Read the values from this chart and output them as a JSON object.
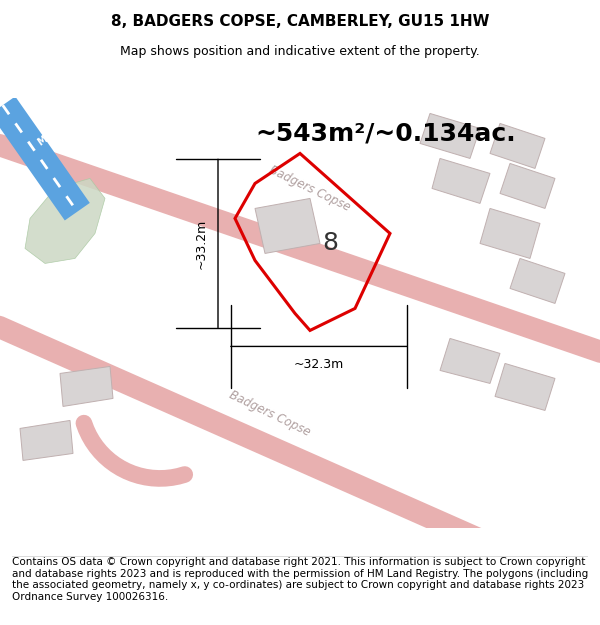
{
  "title": "8, BADGERS COPSE, CAMBERLEY, GU15 1HW",
  "subtitle": "Map shows position and indicative extent of the property.",
  "area_text": "~543m²/~0.134ac.",
  "plot_number": "8",
  "dim_width": "~32.3m",
  "dim_height": "~33.2m",
  "footer": "Contains OS data © Crown copyright and database right 2021. This information is subject to Crown copyright and database rights 2023 and is reproduced with the permission of HM Land Registry. The polygons (including the associated geometry, namely x, y co-ordinates) are subject to Crown copyright and database rights 2023 Ordnance Survey 100026316.",
  "map_bg": "#f2f0f0",
  "plot_fill": "#f5f0f0",
  "plot_outline_color": "#dd0000",
  "road_line_color": "#e8b0b0",
  "road_label_color": "#b0a0a0",
  "building_color": "#d8d4d4",
  "building_outline": "#c0b0b0",
  "green_area_color": "#ccd8c4",
  "motorway_color": "#5ba3e0",
  "motorway_stripe": "#ffffff",
  "title_fontsize": 11,
  "subtitle_fontsize": 9,
  "area_fontsize": 18,
  "footer_fontsize": 7.5,
  "dim_fontsize": 9,
  "plot_label_fontsize": 18,
  "road_label_fontsize": 8.5
}
